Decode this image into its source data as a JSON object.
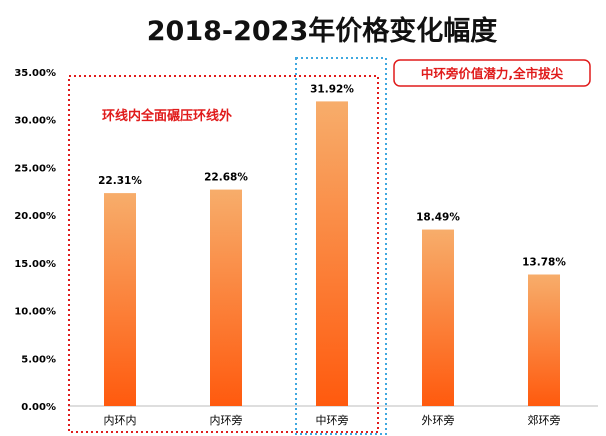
{
  "chart_data": {
    "type": "bar",
    "title": "2018-2023年价格变化幅度",
    "categories": [
      "内环内",
      "内环旁",
      "中环旁",
      "外环旁",
      "郊环旁"
    ],
    "values": [
      22.31,
      22.68,
      31.92,
      18.49,
      13.78
    ],
    "value_labels": [
      "22.31%",
      "22.68%",
      "31.92%",
      "18.49%",
      "13.78%"
    ],
    "ylim": [
      0,
      35
    ],
    "yticks": [
      0,
      5,
      10,
      15,
      20,
      25,
      30,
      35
    ],
    "ytick_labels": [
      "0.00%",
      "5.00%",
      "10.00%",
      "15.00%",
      "20.00%",
      "25.00%",
      "30.00%",
      "35.00%"
    ],
    "grid": false,
    "xlabel": "",
    "ylabel": "",
    "colors": {
      "bar_top": "#f7ad6b",
      "bar_bottom": "#ff5a0e",
      "red_box": "#e01b1b",
      "blue_box": "#3fa8e0"
    },
    "annotations": {
      "left_group": "环线内全面碾压环线外",
      "callout": "中环旁价值潜力,全市拔尖"
    }
  }
}
